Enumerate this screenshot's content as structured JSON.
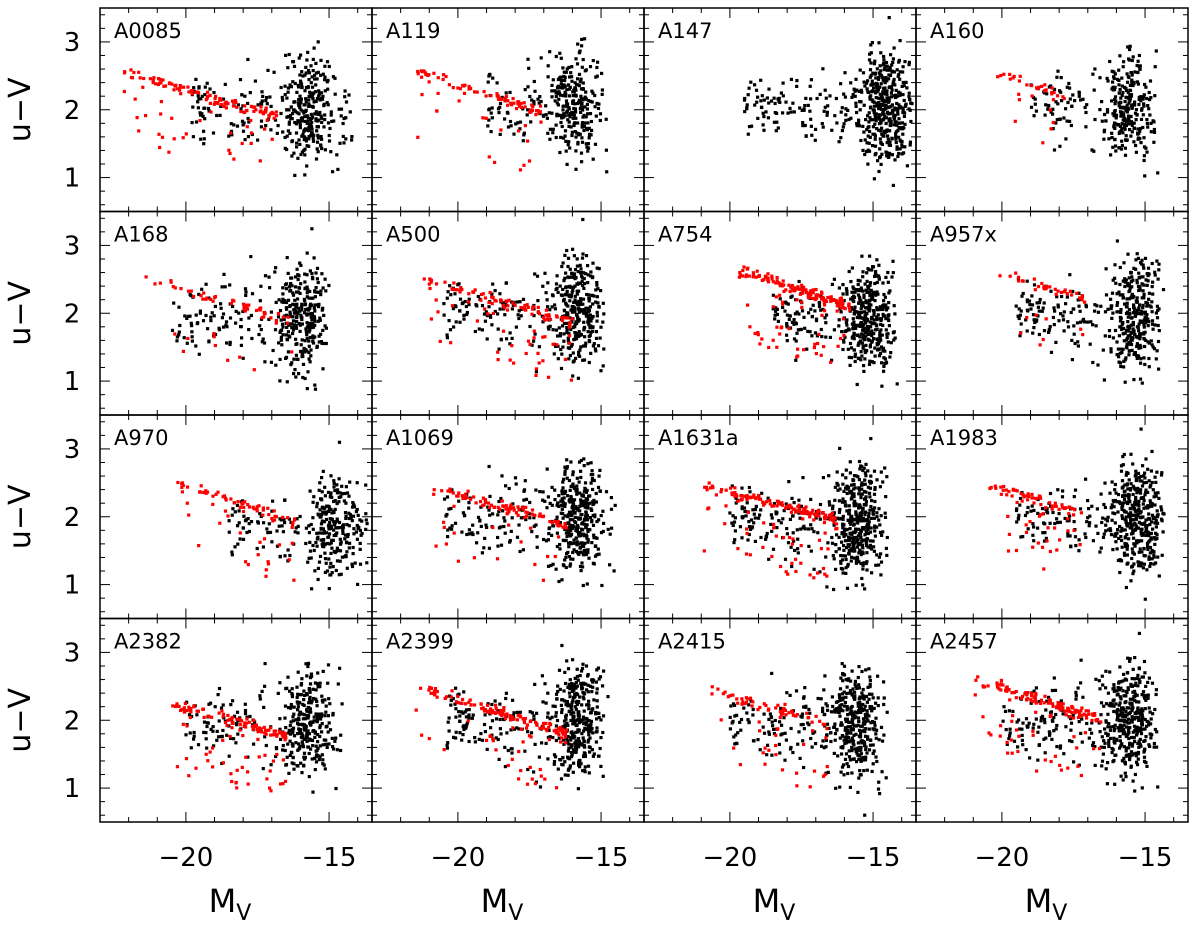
{
  "chart_data": {
    "type": "scatter",
    "layout": {
      "rows": 4,
      "cols": 4
    },
    "xlim": [
      -23,
      -13.5
    ],
    "ylim": [
      0.5,
      3.5
    ],
    "xticks": [
      -20,
      -15
    ],
    "yticks": [
      1,
      2,
      3
    ],
    "xlabel": {
      "main": "M",
      "sub": "V"
    },
    "ylabel": "u−V",
    "colors": {
      "cluster_members": "#ff0000",
      "field": "#000000",
      "frame": "#000000"
    },
    "series_order": [
      "field",
      "cluster_members"
    ],
    "panels": [
      {
        "name": "A0085",
        "field": {
          "xmin": -19.8,
          "xmax": -14.2,
          "ymin": 0.8,
          "ymax": 3.4,
          "n": 380,
          "center": -15.8
        },
        "red_sequence": {
          "x0": -22.2,
          "y0": 2.55,
          "slope": -0.12,
          "xmax": -16.8,
          "n": 130
        }
      },
      {
        "name": "A119",
        "field": {
          "xmin": -19.0,
          "xmax": -14.8,
          "ymin": 1.0,
          "ymax": 3.4,
          "n": 320,
          "center": -16.0
        },
        "red_sequence": {
          "x0": -21.5,
          "y0": 2.55,
          "slope": -0.13,
          "xmax": -17.0,
          "n": 90
        }
      },
      {
        "name": "A147",
        "field": {
          "xmin": -19.5,
          "xmax": -13.6,
          "ymin": 0.8,
          "ymax": 3.5,
          "n": 520,
          "center": -14.6
        },
        "red_sequence": null
      },
      {
        "name": "A160",
        "field": {
          "xmin": -19.0,
          "xmax": -14.5,
          "ymin": 0.9,
          "ymax": 3.4,
          "n": 330,
          "center": -15.6
        },
        "red_sequence": {
          "x0": -20.5,
          "y0": 2.6,
          "slope": -0.15,
          "xmax": -17.8,
          "n": 35
        }
      },
      {
        "name": "A168",
        "field": {
          "xmin": -20.5,
          "xmax": -15.0,
          "ymin": 0.7,
          "ymax": 3.4,
          "n": 380,
          "center": -16.0
        },
        "red_sequence": {
          "x0": -21.5,
          "y0": 2.55,
          "slope": -0.13,
          "xmax": -16.2,
          "n": 60
        }
      },
      {
        "name": "A500",
        "field": {
          "xmin": -20.5,
          "xmax": -15.0,
          "ymin": 0.8,
          "ymax": 3.5,
          "n": 420,
          "center": -15.8
        },
        "red_sequence": {
          "x0": -21.2,
          "y0": 2.5,
          "slope": -0.12,
          "xmax": -16.0,
          "n": 120
        }
      },
      {
        "name": "A754",
        "field": {
          "xmin": -18.5,
          "xmax": -14.2,
          "ymin": 0.6,
          "ymax": 3.5,
          "n": 460,
          "center": -15.2
        },
        "red_sequence": {
          "x0": -19.8,
          "y0": 2.65,
          "slope": -0.14,
          "xmax": -15.8,
          "n": 170
        }
      },
      {
        "name": "A957x",
        "field": {
          "xmin": -19.5,
          "xmax": -14.5,
          "ymin": 0.8,
          "ymax": 3.4,
          "n": 420,
          "center": -15.4
        },
        "red_sequence": {
          "x0": -20.2,
          "y0": 2.6,
          "slope": -0.12,
          "xmax": -17.0,
          "n": 40
        }
      },
      {
        "name": "A970",
        "field": {
          "xmin": -18.5,
          "xmax": -13.6,
          "ymin": 0.7,
          "ymax": 3.2,
          "n": 320,
          "center": -14.8
        },
        "red_sequence": {
          "x0": -20.3,
          "y0": 2.5,
          "slope": -0.14,
          "xmax": -16.2,
          "n": 80
        }
      },
      {
        "name": "A1069",
        "field": {
          "xmin": -20.5,
          "xmax": -14.5,
          "ymin": 0.7,
          "ymax": 3.5,
          "n": 460,
          "center": -15.8
        },
        "red_sequence": {
          "x0": -21.0,
          "y0": 2.45,
          "slope": -0.12,
          "xmax": -16.2,
          "n": 100
        }
      },
      {
        "name": "A1631a",
        "field": {
          "xmin": -20.0,
          "xmax": -14.5,
          "ymin": 0.6,
          "ymax": 3.5,
          "n": 520,
          "center": -15.6
        },
        "red_sequence": {
          "x0": -21.0,
          "y0": 2.45,
          "slope": -0.1,
          "xmax": -16.2,
          "n": 160
        }
      },
      {
        "name": "A1983",
        "field": {
          "xmin": -19.5,
          "xmax": -14.3,
          "ymin": 0.7,
          "ymax": 3.5,
          "n": 470,
          "center": -15.3
        },
        "red_sequence": {
          "x0": -20.5,
          "y0": 2.45,
          "slope": -0.12,
          "xmax": -17.2,
          "n": 80
        }
      },
      {
        "name": "A2382",
        "field": {
          "xmin": -20.0,
          "xmax": -14.5,
          "ymin": 0.7,
          "ymax": 3.4,
          "n": 380,
          "center": -15.8
        },
        "red_sequence": {
          "x0": -20.5,
          "y0": 2.25,
          "slope": -0.12,
          "xmax": -16.5,
          "n": 140
        }
      },
      {
        "name": "A2399",
        "field": {
          "xmin": -20.5,
          "xmax": -15.0,
          "ymin": 0.7,
          "ymax": 3.5,
          "n": 480,
          "center": -15.8
        },
        "red_sequence": {
          "x0": -21.5,
          "y0": 2.5,
          "slope": -0.13,
          "xmax": -16.2,
          "n": 150
        }
      },
      {
        "name": "A2415",
        "field": {
          "xmin": -20.0,
          "xmax": -14.5,
          "ymin": 0.6,
          "ymax": 3.5,
          "n": 450,
          "center": -15.6
        },
        "red_sequence": {
          "x0": -20.8,
          "y0": 2.45,
          "slope": -0.12,
          "xmax": -16.5,
          "n": 80
        }
      },
      {
        "name": "A2457",
        "field": {
          "xmin": -20.0,
          "xmax": -14.5,
          "ymin": 0.7,
          "ymax": 3.5,
          "n": 480,
          "center": -15.6
        },
        "red_sequence": {
          "x0": -21.0,
          "y0": 2.6,
          "slope": -0.13,
          "xmax": -16.5,
          "n": 150
        }
      }
    ]
  }
}
